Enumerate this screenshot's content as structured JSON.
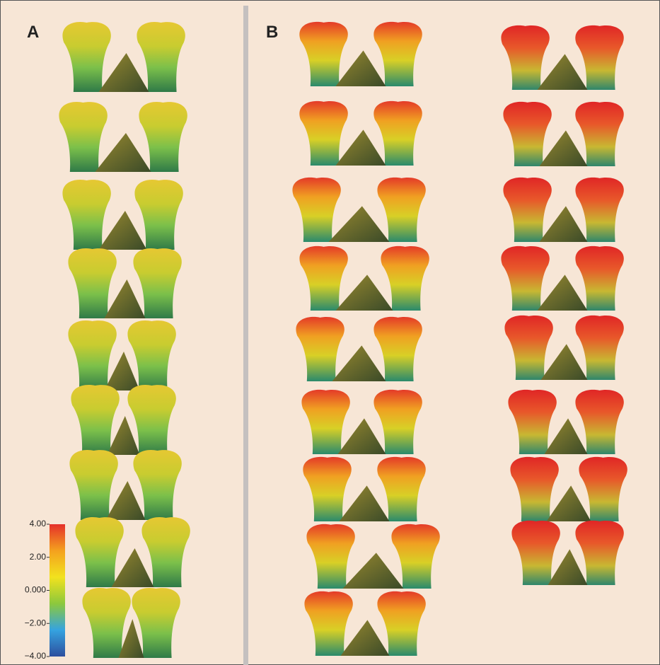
{
  "panels": [
    {
      "label": "A"
    },
    {
      "label": "B"
    }
  ],
  "colorbar": {
    "lim": [
      -4,
      4
    ],
    "ticks": [
      {
        "value": 4,
        "label": "4.00"
      },
      {
        "value": 2,
        "label": "2.00"
      },
      {
        "value": 0,
        "label": "0.000"
      },
      {
        "value": -2,
        "label": "−2.00"
      },
      {
        "value": -4,
        "label": "−4.00"
      }
    ],
    "colors": [
      "#2d4f9e",
      "#35a3e0",
      "#8cc83c",
      "#f2e21e",
      "#f4a11e",
      "#e5302a"
    ]
  }
}
